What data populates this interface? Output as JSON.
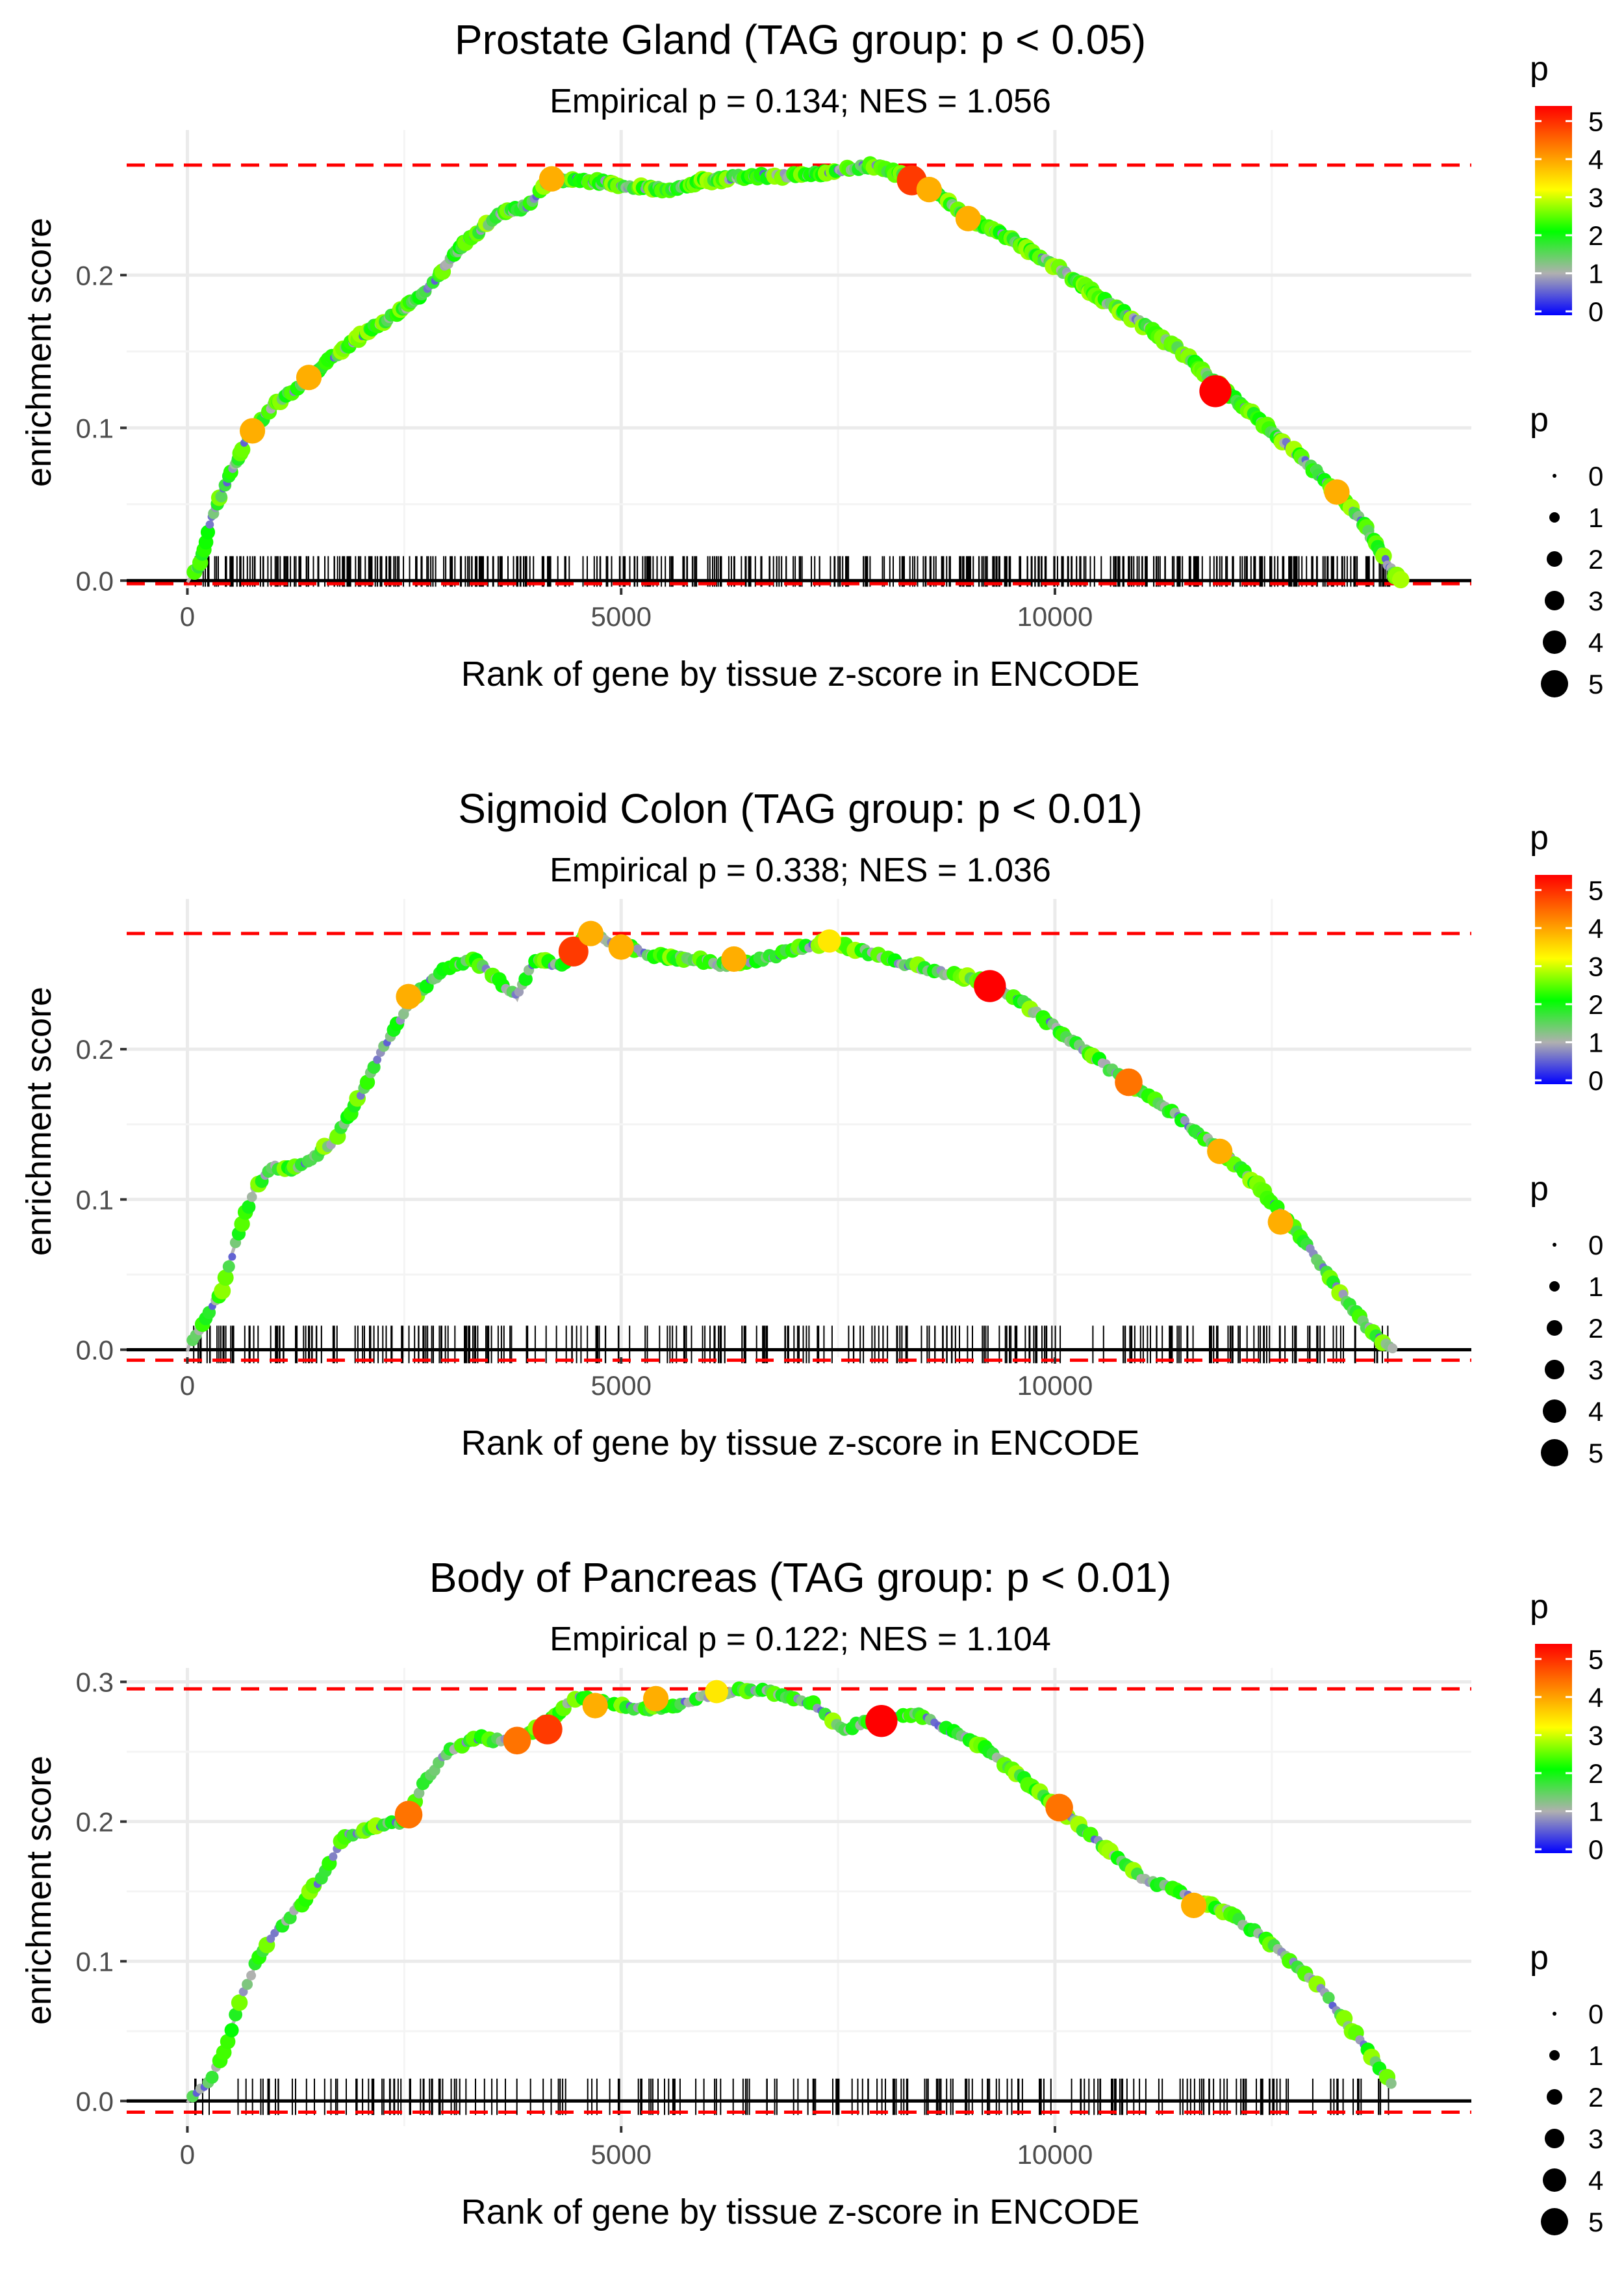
{
  "chart_data": [
    {
      "type": "line",
      "title": "Prostate Gland (TAG group: p < 0.05)",
      "subtitle": "Empirical p = 0.134; NES = 1.056",
      "xlabel": "Rank of gene by tissue z-score in ENCODE",
      "ylabel": "enrichment score",
      "xlim": [
        -700,
        14800
      ],
      "ylim": [
        -0.005,
        0.295
      ],
      "xticks": [
        0,
        5000,
        10000
      ],
      "xtick_labels": [
        "0",
        "5000",
        "10000"
      ],
      "yticks": [
        0.0,
        0.1,
        0.2
      ],
      "ytick_labels": [
        "0.0",
        "0.1",
        "0.2"
      ],
      "max_es": 0.272,
      "min_es": -0.002,
      "grid": true,
      "curve": [
        [
          0,
          0
        ],
        [
          150,
          0.012
        ],
        [
          300,
          0.045
        ],
        [
          500,
          0.07
        ],
        [
          700,
          0.095
        ],
        [
          1000,
          0.115
        ],
        [
          1400,
          0.133
        ],
        [
          1800,
          0.152
        ],
        [
          2200,
          0.168
        ],
        [
          2600,
          0.182
        ],
        [
          2900,
          0.2
        ],
        [
          3200,
          0.222
        ],
        [
          3600,
          0.24
        ],
        [
          3900,
          0.245
        ],
        [
          4200,
          0.263
        ],
        [
          4600,
          0.262
        ],
        [
          5000,
          0.259
        ],
        [
          5500,
          0.256
        ],
        [
          6000,
          0.262
        ],
        [
          6500,
          0.265
        ],
        [
          7000,
          0.265
        ],
        [
          7500,
          0.268
        ],
        [
          7900,
          0.272
        ],
        [
          8300,
          0.264
        ],
        [
          8700,
          0.252
        ],
        [
          9000,
          0.236
        ],
        [
          9500,
          0.224
        ],
        [
          10000,
          0.206
        ],
        [
          10500,
          0.186
        ],
        [
          11000,
          0.168
        ],
        [
          11500,
          0.148
        ],
        [
          12000,
          0.122
        ],
        [
          12500,
          0.098
        ],
        [
          13000,
          0.072
        ],
        [
          13500,
          0.042
        ],
        [
          13900,
          0.005
        ],
        [
          14000,
          0
        ]
      ],
      "hot_points": [
        [
          1400,
          0.133,
          4
        ],
        [
          750,
          0.098,
          4
        ],
        [
          4200,
          0.263,
          4
        ],
        [
          8350,
          0.262,
          5
        ],
        [
          8550,
          0.256,
          4
        ],
        [
          9000,
          0.237,
          4
        ],
        [
          11850,
          0.124,
          5.5
        ],
        [
          13250,
          0.058,
          4
        ]
      ],
      "legend_color_title": "p",
      "legend_color_ticks": [
        "0",
        "1",
        "2",
        "3",
        "4",
        "5"
      ],
      "legend_size_title": "p",
      "legend_size_values": [
        "0",
        "1",
        "2",
        "3",
        "4",
        "5"
      ]
    },
    {
      "type": "line",
      "title": "Sigmoid Colon (TAG group: p < 0.01)",
      "subtitle": "Empirical p = 0.338; NES = 1.036",
      "xlabel": "Rank of gene by tissue z-score in ENCODE",
      "ylabel": "enrichment score",
      "xlim": [
        -700,
        14800
      ],
      "ylim": [
        -0.005,
        0.3
      ],
      "xticks": [
        0,
        5000,
        10000
      ],
      "xtick_labels": [
        "0",
        "5000",
        "10000"
      ],
      "yticks": [
        0.0,
        0.1,
        0.2
      ],
      "ytick_labels": [
        "0.0",
        "0.1",
        "0.2"
      ],
      "max_es": 0.277,
      "min_es": -0.007,
      "grid": true,
      "curve": [
        [
          0,
          0
        ],
        [
          200,
          0.02
        ],
        [
          400,
          0.04
        ],
        [
          600,
          0.08
        ],
        [
          800,
          0.11
        ],
        [
          1000,
          0.122
        ],
        [
          1200,
          0.12
        ],
        [
          1400,
          0.125
        ],
        [
          1700,
          0.14
        ],
        [
          2000,
          0.17
        ],
        [
          2200,
          0.195
        ],
        [
          2400,
          0.215
        ],
        [
          2600,
          0.235
        ],
        [
          3000,
          0.255
        ],
        [
          3300,
          0.26
        ],
        [
          3600,
          0.245
        ],
        [
          3800,
          0.235
        ],
        [
          4000,
          0.26
        ],
        [
          4300,
          0.255
        ],
        [
          4600,
          0.277
        ],
        [
          5000,
          0.27
        ],
        [
          5400,
          0.262
        ],
        [
          5800,
          0.26
        ],
        [
          6200,
          0.256
        ],
        [
          6600,
          0.26
        ],
        [
          7000,
          0.266
        ],
        [
          7400,
          0.272
        ],
        [
          7800,
          0.265
        ],
        [
          8200,
          0.258
        ],
        [
          8600,
          0.252
        ],
        [
          9000,
          0.248
        ],
        [
          9300,
          0.243
        ],
        [
          9700,
          0.228
        ],
        [
          10200,
          0.205
        ],
        [
          10800,
          0.18
        ],
        [
          11300,
          0.16
        ],
        [
          11800,
          0.138
        ],
        [
          12300,
          0.112
        ],
        [
          12800,
          0.078
        ],
        [
          13200,
          0.045
        ],
        [
          13600,
          0.015
        ],
        [
          13900,
          0
        ]
      ],
      "hot_points": [
        [
          2550,
          0.235,
          4
        ],
        [
          4450,
          0.265,
          5
        ],
        [
          4650,
          0.277,
          4
        ],
        [
          5000,
          0.268,
          4
        ],
        [
          6300,
          0.26,
          4
        ],
        [
          7400,
          0.272,
          3.5
        ],
        [
          9250,
          0.242,
          5.5
        ],
        [
          10850,
          0.178,
          4.5
        ],
        [
          11900,
          0.132,
          4
        ],
        [
          12600,
          0.085,
          4
        ]
      ],
      "legend_color_title": "p",
      "legend_color_ticks": [
        "0",
        "1",
        "2",
        "3",
        "4",
        "5"
      ],
      "legend_size_title": "p",
      "legend_size_values": [
        "0",
        "1",
        "2",
        "3",
        "4",
        "5"
      ]
    },
    {
      "type": "line",
      "title": "Body of Pancreas (TAG group: p < 0.01)",
      "subtitle": "Empirical p = 0.122; NES = 1.104",
      "xlabel": "Rank of gene by tissue z-score in ENCODE",
      "ylabel": "enrichment score",
      "xlim": [
        -700,
        14800
      ],
      "ylim": [
        -0.018,
        0.31
      ],
      "xticks": [
        0,
        5000,
        10000
      ],
      "xtick_labels": [
        "0",
        "5000",
        "10000"
      ],
      "yticks": [
        0.0,
        0.1,
        0.2,
        0.3
      ],
      "ytick_labels": [
        "0.0",
        "0.1",
        "0.2",
        "0.3"
      ],
      "max_es": 0.295,
      "min_es": -0.008,
      "grid": true,
      "curve": [
        [
          0,
          0
        ],
        [
          200,
          0.01
        ],
        [
          400,
          0.03
        ],
        [
          600,
          0.07
        ],
        [
          800,
          0.1
        ],
        [
          1000,
          0.12
        ],
        [
          1300,
          0.14
        ],
        [
          1600,
          0.165
        ],
        [
          1800,
          0.19
        ],
        [
          2100,
          0.195
        ],
        [
          2500,
          0.2
        ],
        [
          2700,
          0.225
        ],
        [
          3000,
          0.25
        ],
        [
          3300,
          0.26
        ],
        [
          3600,
          0.258
        ],
        [
          3900,
          0.262
        ],
        [
          4200,
          0.275
        ],
        [
          4500,
          0.29
        ],
        [
          4800,
          0.285
        ],
        [
          5200,
          0.28
        ],
        [
          5600,
          0.283
        ],
        [
          6000,
          0.29
        ],
        [
          6400,
          0.295
        ],
        [
          6800,
          0.292
        ],
        [
          7200,
          0.285
        ],
        [
          7600,
          0.265
        ],
        [
          7800,
          0.272
        ],
        [
          8100,
          0.275
        ],
        [
          8400,
          0.277
        ],
        [
          8800,
          0.265
        ],
        [
          9200,
          0.252
        ],
        [
          9600,
          0.232
        ],
        [
          10000,
          0.212
        ],
        [
          10500,
          0.185
        ],
        [
          11000,
          0.16
        ],
        [
          11500,
          0.148
        ],
        [
          12000,
          0.135
        ],
        [
          12500,
          0.112
        ],
        [
          13000,
          0.085
        ],
        [
          13500,
          0.045
        ],
        [
          13900,
          0.01
        ]
      ],
      "hot_points": [
        [
          2550,
          0.205,
          4.5
        ],
        [
          3800,
          0.258,
          4.5
        ],
        [
          4150,
          0.266,
          5
        ],
        [
          4700,
          0.283,
          4
        ],
        [
          5400,
          0.288,
          4
        ],
        [
          6100,
          0.293,
          3.5
        ],
        [
          8000,
          0.272,
          5.5
        ],
        [
          10050,
          0.21,
          4.5
        ],
        [
          11600,
          0.14,
          4
        ]
      ],
      "legend_color_title": "p",
      "legend_color_ticks": [
        "0",
        "1",
        "2",
        "3",
        "4",
        "5"
      ],
      "legend_size_title": "p",
      "legend_size_values": [
        "0",
        "1",
        "2",
        "3",
        "4",
        "5"
      ]
    }
  ],
  "colors": {
    "threshold_line": "#ff0000",
    "grid": "#ebebeb",
    "curve": "#b3b3b3",
    "gradient_stops": [
      "#0000ff",
      "#b0b0b0",
      "#00ff00",
      "#ffff00",
      "#ff7f00",
      "#ff0000"
    ]
  }
}
